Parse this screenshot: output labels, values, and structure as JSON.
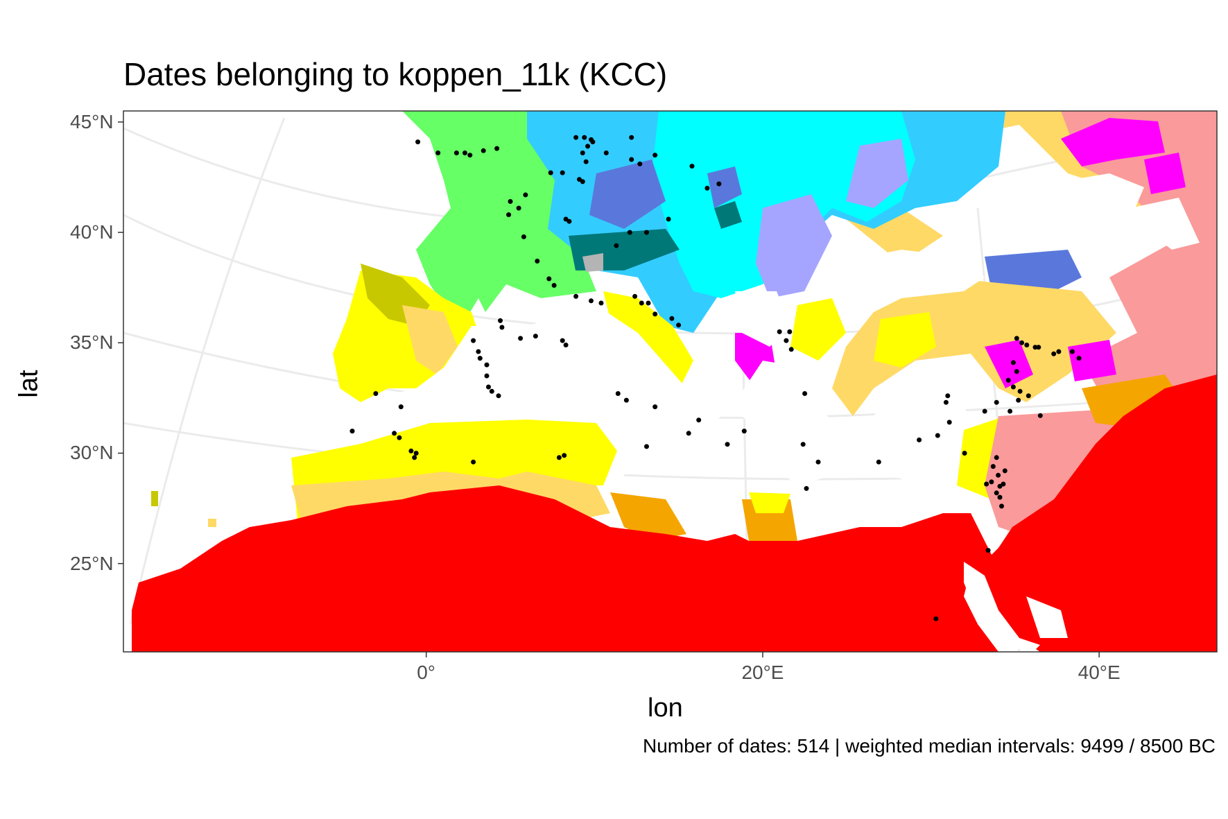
{
  "title": "Dates belonging to koppen_11k (KCC)",
  "caption": "Number of dates: 514 | weighted median intervals: 9499 / 8500 BC",
  "axes": {
    "xlabel": "lon",
    "ylabel": "lat",
    "x_ticks": [
      {
        "value": 0,
        "label": "0°"
      },
      {
        "value": 20,
        "label": "20°E"
      },
      {
        "value": 40,
        "label": "40°E"
      }
    ],
    "y_ticks": [
      {
        "value": 45,
        "label": "45°N"
      },
      {
        "value": 40,
        "label": "40°N"
      },
      {
        "value": 35,
        "label": "35°N"
      },
      {
        "value": 30,
        "label": "30°N"
      },
      {
        "value": 25,
        "label": "25°N"
      }
    ],
    "xlim": [
      -18,
      47
    ],
    "ylim": [
      21,
      45.5
    ]
  },
  "colors": {
    "desert_hot": "#ff0000",
    "steppe": "#fa9a9a",
    "steppe_cold": "#f5a500",
    "mediterranean_hot": "#ffff00",
    "mediterranean_warm": "#ffd966",
    "mediterranean_cold": "#c8c800",
    "humid_subtropical": "#66ff66",
    "oceanic": "#33ccff",
    "continental_hot": "#ff00ff",
    "continental_warm": "#00ffff",
    "continental_cool": "#a5a5ff",
    "continental_dry": "#5a78dc",
    "subarctic": "#007878",
    "tundra": "#b4b4b4",
    "dots": "#000000"
  },
  "chart_data": {
    "type": "scatter",
    "title": "Dates belonging to koppen_11k (KCC)",
    "xlabel": "lon",
    "ylabel": "lat",
    "points": [
      [
        -0.5,
        44.1
      ],
      [
        0.7,
        43.6
      ],
      [
        1.8,
        43.6
      ],
      [
        2.3,
        43.6
      ],
      [
        2.6,
        43.5
      ],
      [
        3.4,
        43.7
      ],
      [
        4.2,
        43.8
      ],
      [
        8.9,
        44.3
      ],
      [
        9.4,
        44.3
      ],
      [
        9.8,
        44.2
      ],
      [
        9.9,
        44.1
      ],
      [
        9.6,
        43.9
      ],
      [
        9.3,
        43.6
      ],
      [
        9.5,
        43.2
      ],
      [
        10.7,
        43.6
      ],
      [
        12.2,
        44.3
      ],
      [
        12.7,
        43.1
      ],
      [
        13.6,
        43.5
      ],
      [
        12.2,
        43.3
      ],
      [
        15.8,
        43.0
      ],
      [
        7.4,
        42.7
      ],
      [
        8.1,
        42.7
      ],
      [
        9.1,
        42.4
      ],
      [
        9.3,
        42.3
      ],
      [
        17.4,
        42.2
      ],
      [
        16.7,
        42.0
      ],
      [
        5.9,
        41.7
      ],
      [
        5.0,
        41.4
      ],
      [
        5.5,
        41.1
      ],
      [
        4.9,
        40.8
      ],
      [
        8.3,
        40.6
      ],
      [
        8.5,
        40.5
      ],
      [
        14.4,
        40.6
      ],
      [
        13.1,
        40.0
      ],
      [
        12.1,
        40.0
      ],
      [
        11.3,
        39.4
      ],
      [
        5.8,
        39.8
      ],
      [
        6.6,
        38.7
      ],
      [
        7.3,
        37.9
      ],
      [
        7.6,
        37.6
      ],
      [
        8.9,
        37.1
      ],
      [
        9.8,
        36.9
      ],
      [
        10.4,
        36.8
      ],
      [
        12.4,
        37.1
      ],
      [
        12.8,
        36.8
      ],
      [
        13.2,
        36.8
      ],
      [
        13.6,
        36.3
      ],
      [
        14.6,
        36.1
      ],
      [
        15.0,
        35.8
      ],
      [
        4.4,
        36.0
      ],
      [
        4.5,
        35.7
      ],
      [
        5.6,
        35.2
      ],
      [
        6.5,
        35.3
      ],
      [
        8.1,
        35.1
      ],
      [
        8.3,
        34.9
      ],
      [
        2.8,
        35.1
      ],
      [
        3.1,
        34.6
      ],
      [
        3.2,
        34.3
      ],
      [
        3.6,
        34.0
      ],
      [
        3.6,
        33.5
      ],
      [
        3.7,
        33.0
      ],
      [
        3.9,
        32.8
      ],
      [
        4.3,
        32.6
      ],
      [
        11.4,
        32.7
      ],
      [
        11.9,
        32.4
      ],
      [
        13.6,
        32.1
      ],
      [
        16.2,
        31.5
      ],
      [
        18.9,
        31.0
      ],
      [
        21.0,
        35.5
      ],
      [
        21.6,
        35.5
      ],
      [
        21.4,
        35.1
      ],
      [
        21.7,
        34.7
      ],
      [
        22.5,
        32.7
      ],
      [
        13.1,
        30.3
      ],
      [
        15.6,
        30.9
      ],
      [
        17.9,
        30.4
      ],
      [
        22.4,
        30.4
      ],
      [
        23.3,
        29.6
      ],
      [
        29.3,
        30.6
      ],
      [
        31.1,
        31.4
      ],
      [
        30.4,
        30.8
      ],
      [
        32.0,
        30.0
      ],
      [
        35.1,
        35.2
      ],
      [
        35.4,
        35.0
      ],
      [
        35.7,
        34.9
      ],
      [
        36.2,
        34.8
      ],
      [
        36.4,
        34.8
      ],
      [
        37.3,
        34.5
      ],
      [
        37.6,
        34.6
      ],
      [
        38.4,
        34.6
      ],
      [
        38.8,
        34.3
      ],
      [
        34.9,
        34.1
      ],
      [
        35.1,
        33.7
      ],
      [
        34.6,
        33.3
      ],
      [
        34.9,
        33.0
      ],
      [
        35.3,
        32.8
      ],
      [
        35.8,
        32.6
      ],
      [
        35.2,
        32.4
      ],
      [
        34.7,
        31.9
      ],
      [
        36.5,
        31.7
      ],
      [
        33.9,
        32.3
      ],
      [
        33.2,
        31.9
      ],
      [
        31.0,
        32.6
      ],
      [
        30.9,
        32.3
      ],
      [
        -3.0,
        32.7
      ],
      [
        -1.5,
        32.1
      ],
      [
        -4.4,
        31.0
      ],
      [
        -1.9,
        30.9
      ],
      [
        -1.6,
        30.7
      ],
      [
        -0.9,
        30.1
      ],
      [
        -0.6,
        30.0
      ],
      [
        -0.7,
        29.8
      ],
      [
        2.8,
        29.6
      ],
      [
        7.9,
        29.8
      ],
      [
        8.2,
        29.9
      ],
      [
        26.9,
        29.6
      ],
      [
        22.6,
        28.4
      ],
      [
        33.9,
        29.8
      ],
      [
        33.7,
        29.4
      ],
      [
        34.4,
        29.2
      ],
      [
        34.0,
        29.0
      ],
      [
        34.3,
        28.6
      ],
      [
        34.1,
        28.5
      ],
      [
        33.6,
        28.7
      ],
      [
        33.3,
        28.6
      ],
      [
        33.9,
        28.2
      ],
      [
        34.1,
        28.0
      ],
      [
        34.2,
        27.6
      ],
      [
        33.4,
        25.6
      ],
      [
        30.3,
        22.5
      ]
    ]
  }
}
